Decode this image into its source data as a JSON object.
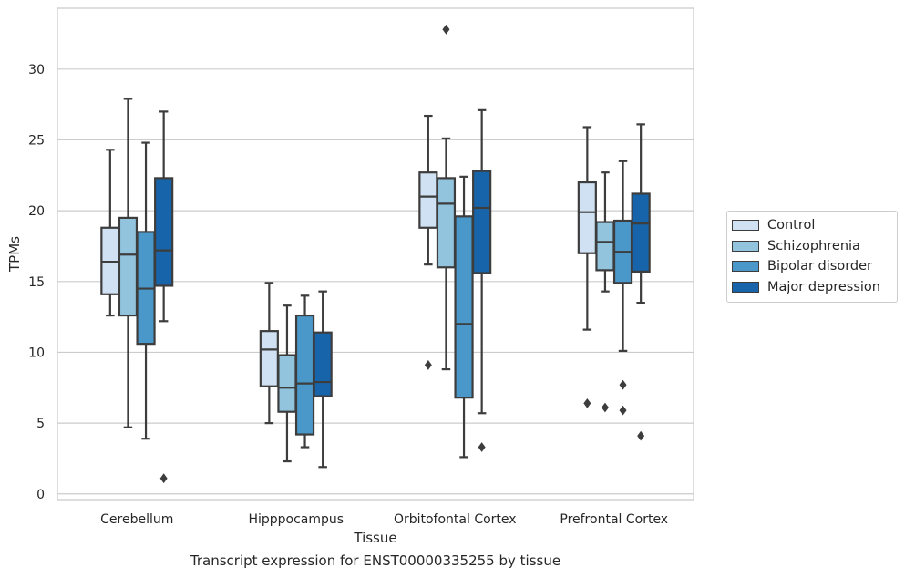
{
  "caption": "Transcript expression for ENST00000335255 by tissue",
  "colors": {
    "Control": "#cfe1f2",
    "Schizophrenia": "#93c4de",
    "Bipolar disorder": "#4a97c9",
    "Major depression": "#1764ab"
  },
  "chart_data": {
    "type": "box",
    "xlabel": "Tissue",
    "ylabel": "TPMs",
    "categories": [
      "Cerebellum",
      "Hipppocampus",
      "Orbitofontal Cortex",
      "Prefrontal Cortex"
    ],
    "ylim": [
      -0.4,
      34.3
    ],
    "yticks": [
      0,
      5,
      10,
      15,
      20,
      25,
      30
    ],
    "grid": "horizontal",
    "legend_position": "right",
    "series": [
      {
        "name": "Control",
        "boxes": [
          {
            "whislo": 12.6,
            "q1": 14.1,
            "med": 16.4,
            "q3": 18.8,
            "whishi": 24.3,
            "fliers": []
          },
          {
            "whislo": 5.0,
            "q1": 7.6,
            "med": 10.2,
            "q3": 11.5,
            "whishi": 14.9,
            "fliers": []
          },
          {
            "whislo": 16.2,
            "q1": 18.8,
            "med": 21.0,
            "q3": 22.7,
            "whishi": 26.7,
            "fliers": [
              9.1
            ]
          },
          {
            "whislo": 11.6,
            "q1": 17.0,
            "med": 19.9,
            "q3": 22.0,
            "whishi": 25.9,
            "fliers": [
              6.4
            ]
          }
        ]
      },
      {
        "name": "Schizophrenia",
        "boxes": [
          {
            "whislo": 4.7,
            "q1": 12.6,
            "med": 16.9,
            "q3": 19.5,
            "whishi": 27.9,
            "fliers": []
          },
          {
            "whislo": 2.3,
            "q1": 5.8,
            "med": 7.5,
            "q3": 9.8,
            "whishi": 13.3,
            "fliers": []
          },
          {
            "whislo": 8.8,
            "q1": 16.0,
            "med": 20.5,
            "q3": 22.3,
            "whishi": 25.1,
            "fliers": [
              32.8
            ]
          },
          {
            "whislo": 14.3,
            "q1": 15.8,
            "med": 17.8,
            "q3": 19.2,
            "whishi": 22.7,
            "fliers": [
              6.1
            ]
          }
        ]
      },
      {
        "name": "Bipolar disorder",
        "boxes": [
          {
            "whislo": 3.9,
            "q1": 10.6,
            "med": 14.5,
            "q3": 18.5,
            "whishi": 24.8,
            "fliers": []
          },
          {
            "whislo": 3.3,
            "q1": 4.2,
            "med": 7.8,
            "q3": 12.6,
            "whishi": 14.0,
            "fliers": []
          },
          {
            "whislo": 2.6,
            "q1": 6.8,
            "med": 12.0,
            "q3": 19.6,
            "whishi": 22.4,
            "fliers": []
          },
          {
            "whislo": 10.1,
            "q1": 14.9,
            "med": 17.1,
            "q3": 19.3,
            "whishi": 23.5,
            "fliers": [
              7.7,
              5.9
            ]
          }
        ]
      },
      {
        "name": "Major depression",
        "boxes": [
          {
            "whislo": 12.2,
            "q1": 14.7,
            "med": 17.2,
            "q3": 22.3,
            "whishi": 27.0,
            "fliers": [
              1.1
            ]
          },
          {
            "whislo": 1.9,
            "q1": 6.9,
            "med": 7.9,
            "q3": 11.4,
            "whishi": 14.3,
            "fliers": []
          },
          {
            "whislo": 5.7,
            "q1": 15.6,
            "med": 20.2,
            "q3": 22.8,
            "whishi": 27.1,
            "fliers": [
              3.3
            ]
          },
          {
            "whislo": 13.5,
            "q1": 15.7,
            "med": 19.1,
            "q3": 21.2,
            "whishi": 26.1,
            "fliers": [
              4.1
            ]
          }
        ]
      }
    ]
  }
}
